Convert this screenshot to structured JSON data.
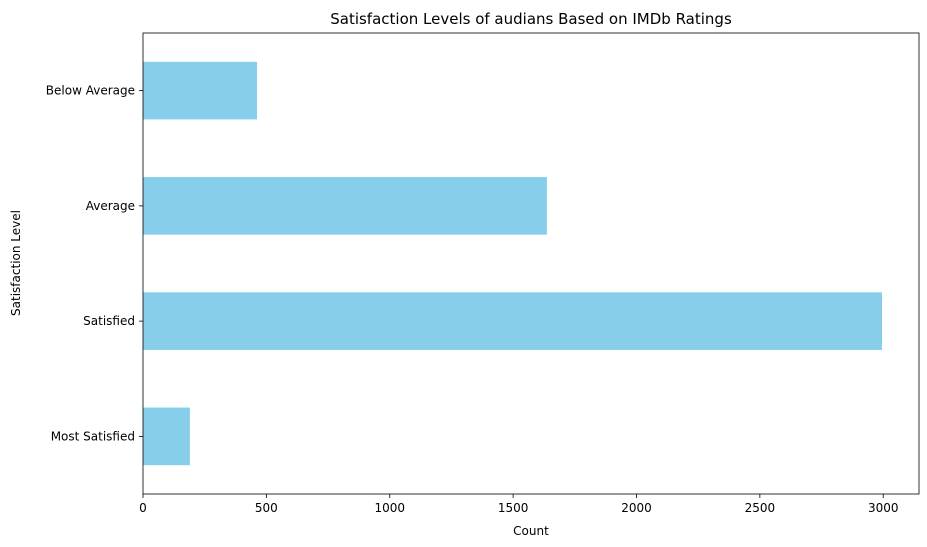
{
  "chart_data": {
    "type": "bar",
    "orientation": "horizontal",
    "title": "Satisfaction Levels of audians Based on IMDb Ratings",
    "xlabel": "Count",
    "ylabel": "Satisfaction Level",
    "categories": [
      "Below Average",
      "Average",
      "Satisfied",
      "Most Satisfied"
    ],
    "values": [
      462,
      1637,
      2995,
      190
    ],
    "xlim": [
      0,
      3145
    ],
    "xticks": [
      0,
      500,
      1000,
      1500,
      2000,
      2500,
      3000
    ],
    "xtick_labels": [
      "0",
      "500",
      "1000",
      "1500",
      "2000",
      "2500",
      "3000"
    ],
    "grid": false,
    "bar_color": "#87ceeb"
  }
}
